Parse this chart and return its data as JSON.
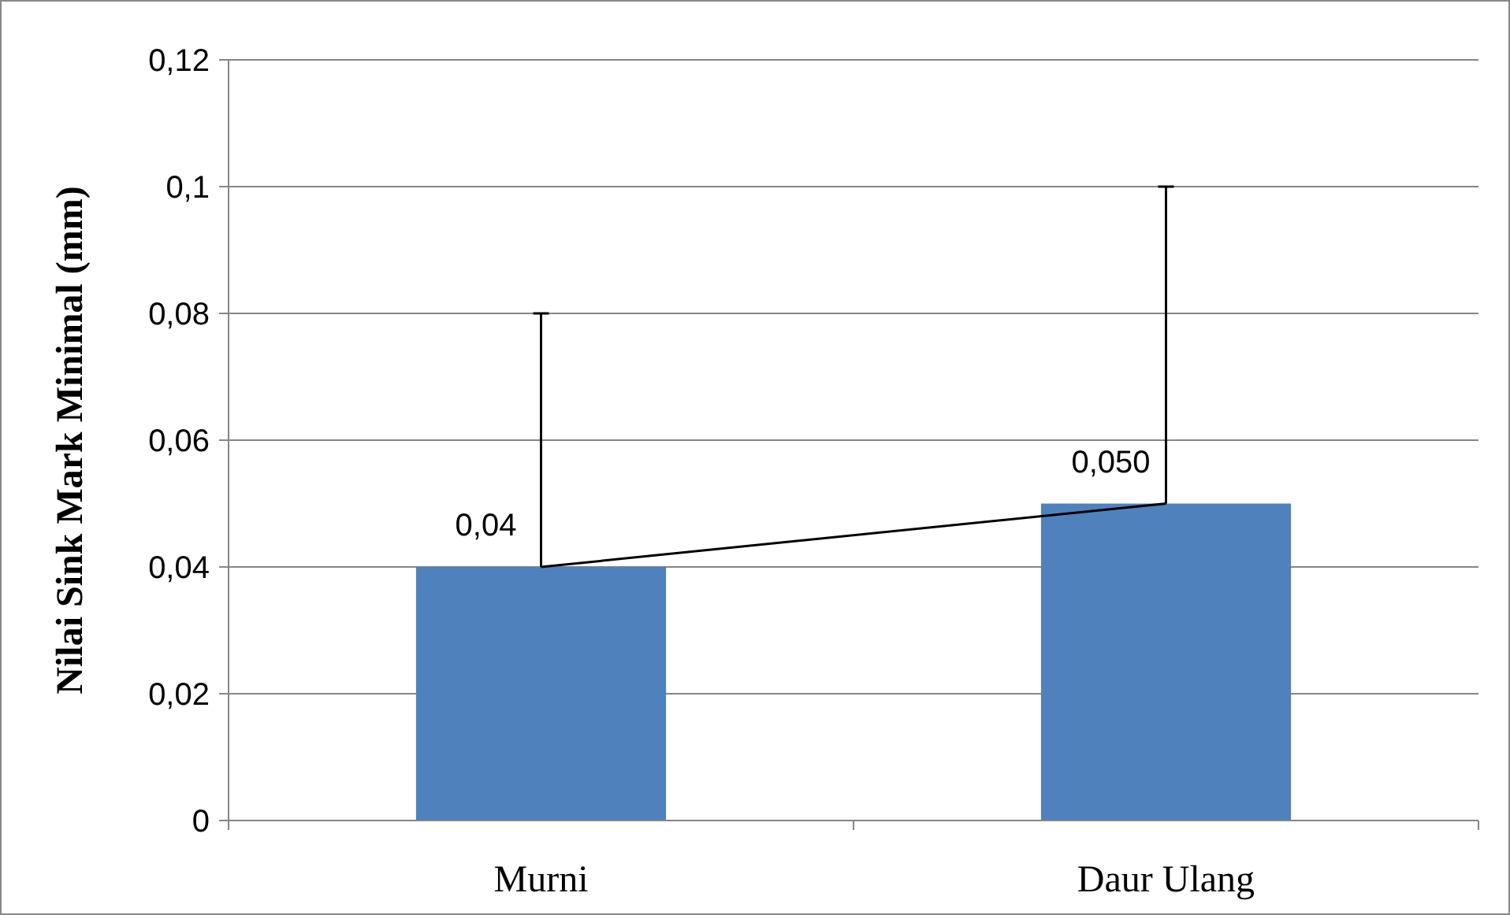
{
  "chart_data": {
    "type": "bar",
    "ylabel": "Nilai Sink Mark Minimal (mm)",
    "categories": [
      "Murni",
      "Daur Ulang"
    ],
    "series": [
      {
        "color": "#4f81bd",
        "values": [
          0.04,
          0.05
        ],
        "errors": [
          [
            0.04,
            0.08
          ],
          [
            0.05,
            0.1
          ]
        ],
        "value_labels": [
          "0,04",
          "0,050"
        ]
      },
      {
        "type": "line",
        "color": "#000000",
        "values": [
          0.04,
          0.05
        ]
      }
    ],
    "ylim": [
      0,
      0.12
    ],
    "yticks": [
      {
        "value": 0,
        "label": "0"
      },
      {
        "value": 0.02,
        "label": "0,02"
      },
      {
        "value": 0.04,
        "label": "0,04"
      },
      {
        "value": 0.06,
        "label": "0,06"
      },
      {
        "value": 0.08,
        "label": "0,08"
      },
      {
        "value": 0.1,
        "label": "0,1"
      },
      {
        "value": 0.12,
        "label": "0,12"
      }
    ],
    "grid": "y"
  }
}
